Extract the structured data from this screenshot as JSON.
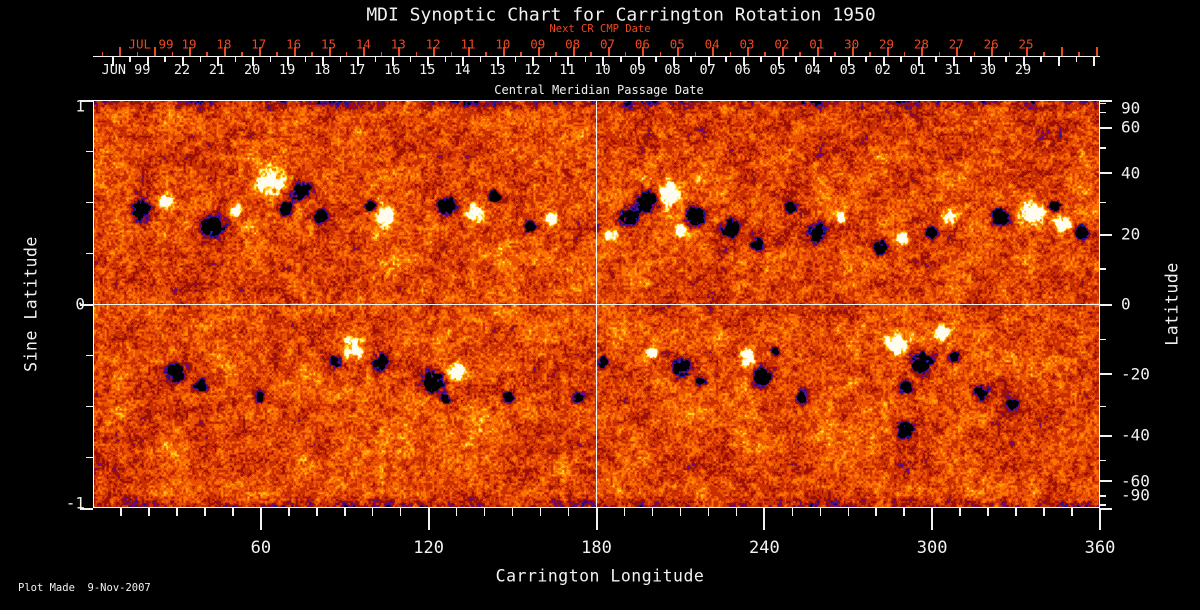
{
  "title": "MDI Synoptic Chart for Carrington Rotation 1950",
  "footer": "Plot Made  9-Nov-2007",
  "colors": {
    "background": "#000000",
    "text": "#f2f2f2",
    "red_axis": "#ee4820",
    "grid_line": "#ffffff"
  },
  "top_axis": {
    "next_cr_label": "Next CR CMP Date",
    "axis_title": "Central Meridian Passage Date",
    "red_month": "JUL 99",
    "red_days": [
      "19",
      "18",
      "17",
      "16",
      "15",
      "14",
      "13",
      "12",
      "11",
      "10",
      "09",
      "08",
      "07",
      "06",
      "05",
      "04",
      "03",
      "02",
      "01",
      "30",
      "29",
      "28",
      "27",
      "26",
      "25"
    ],
    "white_month": "JUN 99",
    "white_days": [
      "22",
      "21",
      "20",
      "19",
      "18",
      "17",
      "16",
      "15",
      "14",
      "13",
      "12",
      "11",
      "10",
      "09",
      "08",
      "07",
      "06",
      "05",
      "04",
      "03",
      "02",
      "01",
      "31",
      "30",
      "29"
    ]
  },
  "left_axis": {
    "title": "Sine Latitude",
    "major_ticks": [
      {
        "value": 1,
        "label": "1"
      },
      {
        "value": 0,
        "label": "0"
      },
      {
        "value": -1,
        "label": "-1"
      }
    ],
    "minor_ticks": [
      0.75,
      0.5,
      0.25,
      -0.25,
      -0.5,
      -0.75
    ]
  },
  "right_axis": {
    "title": "Latitude",
    "major_ticks": [
      {
        "value": 90,
        "label": "90"
      },
      {
        "value": 60,
        "label": "60"
      },
      {
        "value": 40,
        "label": "40"
      },
      {
        "value": 20,
        "label": "20"
      },
      {
        "value": 0,
        "label": "0"
      },
      {
        "value": -20,
        "label": "-20"
      },
      {
        "value": -40,
        "label": "-40"
      },
      {
        "value": -60,
        "label": "-60"
      },
      {
        "value": -90,
        "label": "-90"
      }
    ],
    "minor_ticks": [
      80,
      70,
      50,
      30,
      10,
      -10,
      -30,
      -50,
      -70,
      -80
    ]
  },
  "bottom_axis": {
    "title": "Carrington Longitude",
    "major_ticks": [
      {
        "value": 60,
        "label": "60"
      },
      {
        "value": 120,
        "label": "120"
      },
      {
        "value": 180,
        "label": "180"
      },
      {
        "value": 240,
        "label": "240"
      },
      {
        "value": 300,
        "label": "300"
      },
      {
        "value": 360,
        "label": "360"
      }
    ],
    "minor_step_deg": 10
  },
  "chart_data": {
    "type": "heatmap",
    "title": "MDI Synoptic Chart for Carrington Rotation 1950",
    "xlabel": "Carrington Longitude",
    "ylabel_left": "Sine Latitude",
    "ylabel_right": "Latitude",
    "x_range_deg": [
      0,
      360
    ],
    "y_range_sine_latitude": [
      -1,
      1
    ],
    "top_axis_title": "Central Meridian Passage Date",
    "cmp_dates_white": {
      "month": "JUN 99",
      "days": [
        "22",
        "21",
        "20",
        "19",
        "18",
        "17",
        "16",
        "15",
        "14",
        "13",
        "12",
        "11",
        "10",
        "09",
        "08",
        "07",
        "06",
        "05",
        "04",
        "03",
        "02",
        "01",
        "31",
        "30",
        "29"
      ]
    },
    "next_cr_cmp_dates_red": {
      "month": "JUL 99",
      "days": [
        "19",
        "18",
        "17",
        "16",
        "15",
        "14",
        "13",
        "12",
        "11",
        "10",
        "09",
        "08",
        "07",
        "06",
        "05",
        "04",
        "03",
        "02",
        "01",
        "30",
        "29",
        "28",
        "27",
        "26",
        "25"
      ]
    },
    "grid_lines": {
      "vertical_longitude_deg": 180,
      "horizontal_sine_latitude": 0
    },
    "legend_position": "none",
    "palette_stops": [
      {
        "max": -0.1,
        "rgb": [
          0,
          0,
          0
        ]
      },
      {
        "max": 0.02,
        "rgb": [
          34,
          16,
          134
        ]
      },
      {
        "max": 0.14,
        "rgb": [
          106,
          8,
          116
        ]
      },
      {
        "max": 0.3,
        "rgb": [
          154,
          18,
          6
        ]
      },
      {
        "max": 0.48,
        "rgb": [
          201,
          47,
          0
        ]
      },
      {
        "max": 0.64,
        "rgb": [
          234,
          81,
          2
        ]
      },
      {
        "max": 0.78,
        "rgb": [
          251,
          116,
          2
        ]
      },
      {
        "max": 0.88,
        "rgb": [
          255,
          157,
          6
        ]
      },
      {
        "max": 0.95,
        "rgb": [
          255,
          207,
          30
        ]
      },
      {
        "max": 1.04,
        "rgb": [
          255,
          235,
          140
        ]
      },
      {
        "max": 99,
        "rgb": [
          255,
          251,
          238
        ]
      }
    ],
    "active_regions": [
      {
        "lon": 16.8,
        "sin_lat": 0.461,
        "r": 8,
        "polarity": "-"
      },
      {
        "lon": 25.7,
        "sin_lat": 0.51,
        "r": 7,
        "polarity": "+"
      },
      {
        "lon": 41.8,
        "sin_lat": 0.387,
        "r": 10,
        "polarity": "-"
      },
      {
        "lon": 50.8,
        "sin_lat": 0.461,
        "r": 6,
        "polarity": "+"
      },
      {
        "lon": 63.3,
        "sin_lat": 0.598,
        "r": 13,
        "polarity": "+"
      },
      {
        "lon": 74.0,
        "sin_lat": 0.559,
        "r": 9,
        "polarity": "-"
      },
      {
        "lon": 68.6,
        "sin_lat": 0.475,
        "r": 6,
        "polarity": "-"
      },
      {
        "lon": 81.2,
        "sin_lat": 0.436,
        "r": 6,
        "polarity": "-"
      },
      {
        "lon": 99.0,
        "sin_lat": 0.485,
        "r": 5,
        "polarity": "-"
      },
      {
        "lon": 104.4,
        "sin_lat": 0.436,
        "r": 9,
        "polarity": "+"
      },
      {
        "lon": 125.8,
        "sin_lat": 0.485,
        "r": 8,
        "polarity": "-"
      },
      {
        "lon": 136.6,
        "sin_lat": 0.451,
        "r": 9,
        "polarity": "+"
      },
      {
        "lon": 143.7,
        "sin_lat": 0.534,
        "r": 5,
        "polarity": "-"
      },
      {
        "lon": 156.2,
        "sin_lat": 0.387,
        "r": 6,
        "polarity": "-"
      },
      {
        "lon": 164.1,
        "sin_lat": 0.422,
        "r": 6,
        "polarity": "+"
      },
      {
        "lon": 184.8,
        "sin_lat": 0.338,
        "r": 7,
        "polarity": "+"
      },
      {
        "lon": 191.3,
        "sin_lat": 0.436,
        "r": 8,
        "polarity": "-"
      },
      {
        "lon": 198.4,
        "sin_lat": 0.51,
        "r": 11,
        "polarity": "-"
      },
      {
        "lon": 205.6,
        "sin_lat": 0.544,
        "r": 11,
        "polarity": "+"
      },
      {
        "lon": 215.2,
        "sin_lat": 0.436,
        "r": 9,
        "polarity": "-"
      },
      {
        "lon": 209.9,
        "sin_lat": 0.363,
        "r": 5,
        "polarity": "+"
      },
      {
        "lon": 227.7,
        "sin_lat": 0.373,
        "r": 8,
        "polarity": "-"
      },
      {
        "lon": 237.4,
        "sin_lat": 0.299,
        "r": 6,
        "polarity": "-"
      },
      {
        "lon": 249.2,
        "sin_lat": 0.475,
        "r": 5,
        "polarity": "-"
      },
      {
        "lon": 259.2,
        "sin_lat": 0.353,
        "r": 8,
        "polarity": "-"
      },
      {
        "lon": 267.8,
        "sin_lat": 0.426,
        "r": 5,
        "polarity": "+"
      },
      {
        "lon": 281.4,
        "sin_lat": 0.279,
        "r": 7,
        "polarity": "-"
      },
      {
        "lon": 289.6,
        "sin_lat": 0.328,
        "r": 5,
        "polarity": "+"
      },
      {
        "lon": 306.4,
        "sin_lat": 0.426,
        "r": 7,
        "polarity": "+"
      },
      {
        "lon": 300.0,
        "sin_lat": 0.353,
        "r": 5,
        "polarity": "-"
      },
      {
        "lon": 324.3,
        "sin_lat": 0.426,
        "r": 8,
        "polarity": "-"
      },
      {
        "lon": 335.7,
        "sin_lat": 0.451,
        "r": 11,
        "polarity": "+"
      },
      {
        "lon": 346.8,
        "sin_lat": 0.402,
        "r": 8,
        "polarity": "+"
      },
      {
        "lon": 353.6,
        "sin_lat": 0.353,
        "r": 6,
        "polarity": "-"
      },
      {
        "lon": 343.9,
        "sin_lat": 0.485,
        "r": 5,
        "polarity": "-"
      },
      {
        "lon": 29.3,
        "sin_lat": -0.333,
        "r": 9,
        "polarity": "-"
      },
      {
        "lon": 38.3,
        "sin_lat": -0.407,
        "r": 6,
        "polarity": "-"
      },
      {
        "lon": 59.0,
        "sin_lat": -0.456,
        "r": 5,
        "polarity": "-"
      },
      {
        "lon": 92.6,
        "sin_lat": -0.211,
        "r": 10,
        "polarity": "+"
      },
      {
        "lon": 102.6,
        "sin_lat": -0.284,
        "r": 8,
        "polarity": "-"
      },
      {
        "lon": 86.5,
        "sin_lat": -0.284,
        "r": 5,
        "polarity": "-"
      },
      {
        "lon": 121.2,
        "sin_lat": -0.382,
        "r": 10,
        "polarity": "-"
      },
      {
        "lon": 129.8,
        "sin_lat": -0.333,
        "r": 8,
        "polarity": "+"
      },
      {
        "lon": 125.8,
        "sin_lat": -0.461,
        "r": 5,
        "polarity": "-"
      },
      {
        "lon": 148.4,
        "sin_lat": -0.456,
        "r": 5,
        "polarity": "-"
      },
      {
        "lon": 173.4,
        "sin_lat": -0.456,
        "r": 5,
        "polarity": "-"
      },
      {
        "lon": 182.0,
        "sin_lat": -0.284,
        "r": 5,
        "polarity": "-"
      },
      {
        "lon": 199.8,
        "sin_lat": -0.235,
        "r": 5,
        "polarity": "+"
      },
      {
        "lon": 210.6,
        "sin_lat": -0.309,
        "r": 8,
        "polarity": "-"
      },
      {
        "lon": 217.0,
        "sin_lat": -0.382,
        "r": 5,
        "polarity": "-"
      },
      {
        "lon": 233.8,
        "sin_lat": -0.26,
        "r": 8,
        "polarity": "+"
      },
      {
        "lon": 239.2,
        "sin_lat": -0.358,
        "r": 8,
        "polarity": "-"
      },
      {
        "lon": 243.8,
        "sin_lat": -0.235,
        "r": 4,
        "polarity": "-"
      },
      {
        "lon": 253.5,
        "sin_lat": -0.456,
        "r": 5,
        "polarity": "-"
      },
      {
        "lon": 287.8,
        "sin_lat": -0.186,
        "r": 9,
        "polarity": "+"
      },
      {
        "lon": 296.4,
        "sin_lat": -0.284,
        "r": 11,
        "polarity": "-"
      },
      {
        "lon": 303.5,
        "sin_lat": -0.137,
        "r": 7,
        "polarity": "+"
      },
      {
        "lon": 308.2,
        "sin_lat": -0.26,
        "r": 5,
        "polarity": "-"
      },
      {
        "lon": 290.3,
        "sin_lat": -0.407,
        "r": 6,
        "polarity": "-"
      },
      {
        "lon": 317.8,
        "sin_lat": -0.431,
        "r": 7,
        "polarity": "-"
      },
      {
        "lon": 328.5,
        "sin_lat": -0.49,
        "r": 5,
        "polarity": "-"
      },
      {
        "lon": 290.3,
        "sin_lat": -0.618,
        "r": 7,
        "polarity": "-"
      }
    ]
  }
}
